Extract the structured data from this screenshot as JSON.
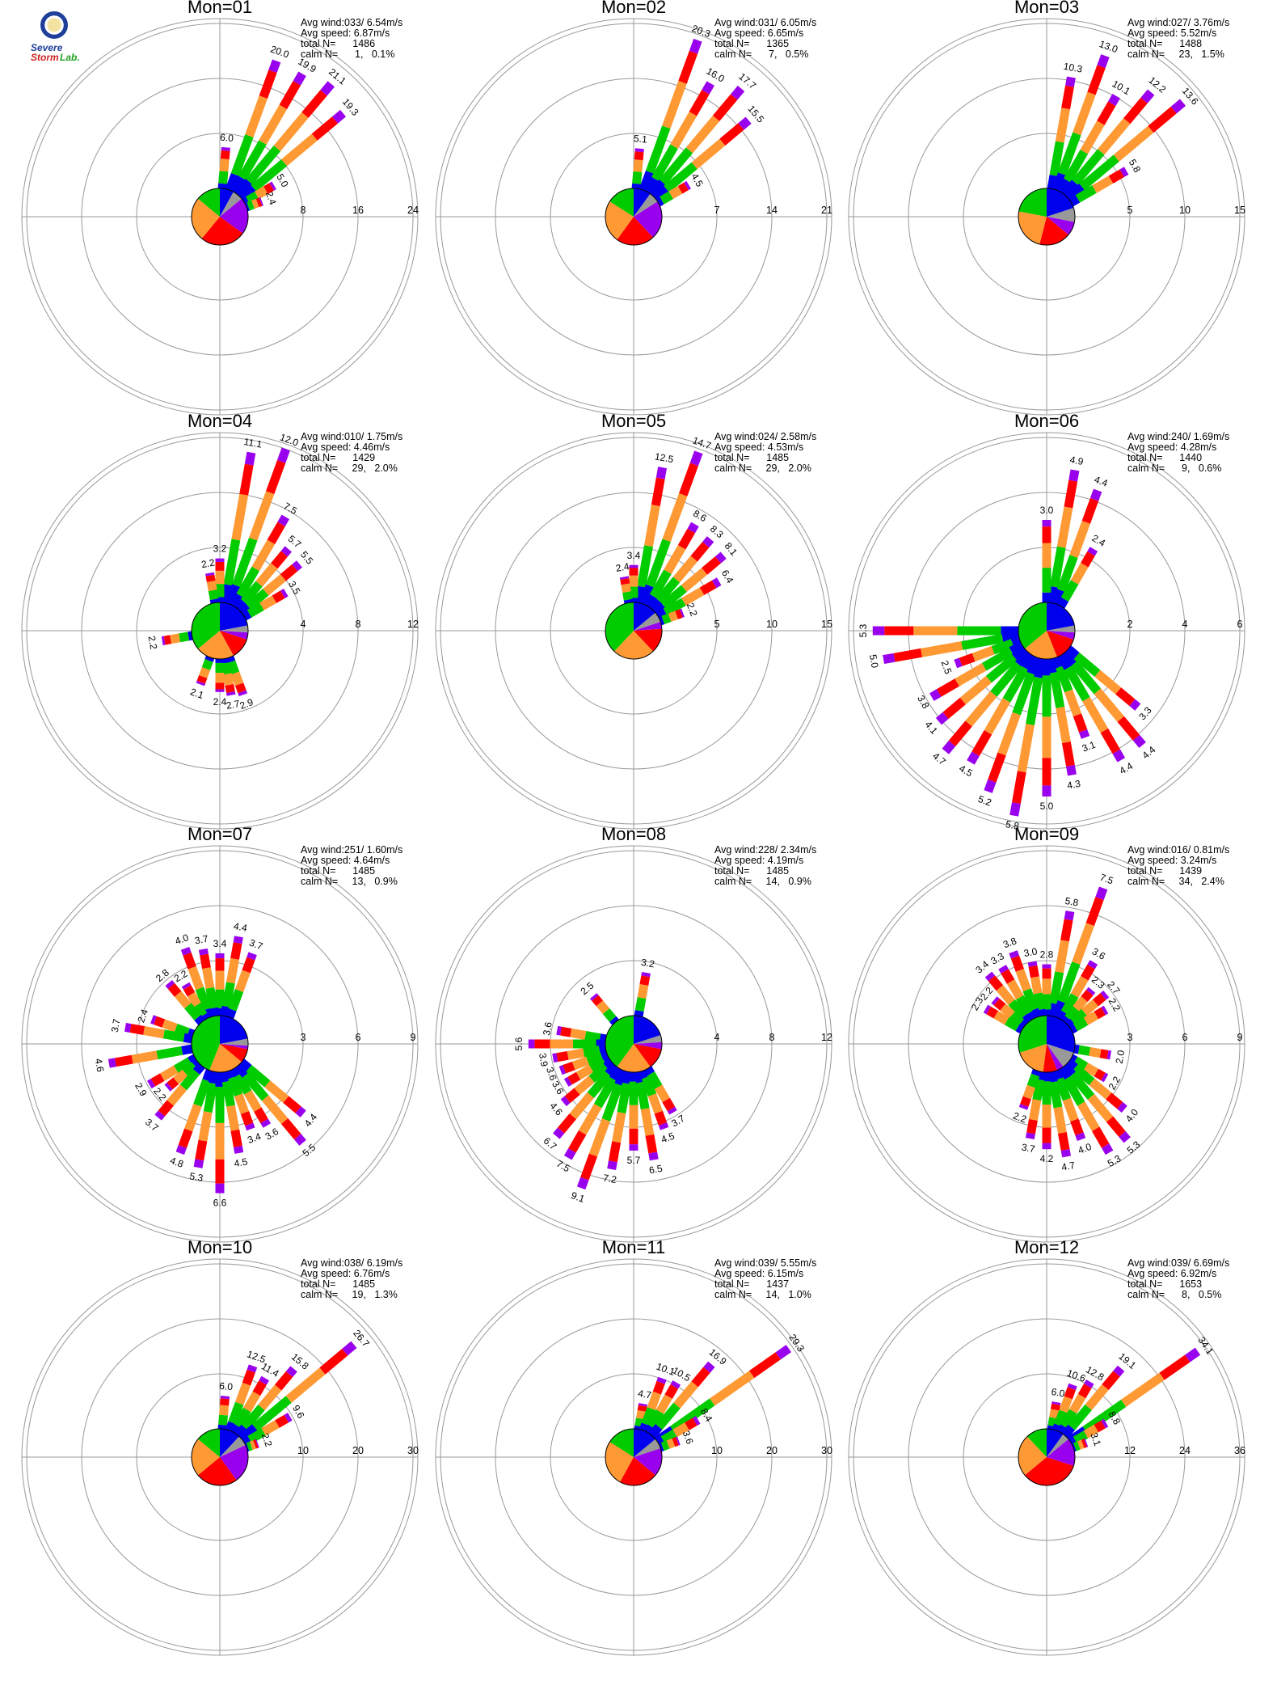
{
  "logo": {
    "text_severe": "Severe",
    "text_storm": "Storm",
    "text_lab": "Lab."
  },
  "colors": {
    "blue": "#0000ee",
    "green": "#00cc00",
    "orange": "#ff9933",
    "red": "#ff0000",
    "purple": "#9900ee",
    "gray": "#999999",
    "ring": "#999999"
  },
  "chart_data": [
    {
      "type": "polar-bar",
      "title": "Mon=01",
      "avg_wind": "Avg wind:033/ 6.54m/s",
      "avg_speed": "Avg speed: 6.87m/s",
      "total_n": "total N=      1486",
      "calm_n": "calm N=      1,   0.1%",
      "ring_values": [
        8,
        16,
        24
      ],
      "pie_percent": {
        "blue": 8,
        "green": 14,
        "orange": 25,
        "red": 26,
        "purple": 21,
        "gray": 6
      },
      "bars": [
        {
          "dir": 20,
          "total": 20.0,
          "label": "20.0"
        },
        {
          "dir": 30,
          "total": 19.9,
          "label": "19.9"
        },
        {
          "dir": 40,
          "total": 21.1,
          "label": "21.1"
        },
        {
          "dir": 50,
          "total": 19.3,
          "label": "19.3"
        },
        {
          "dir": 5,
          "total": 6.0,
          "label": "6.0"
        },
        {
          "dir": 60,
          "total": 5.0,
          "label": "5.0"
        },
        {
          "dir": 70,
          "total": 2.4,
          "label": "2.4"
        }
      ]
    },
    {
      "type": "polar-bar",
      "title": "Mon=02",
      "avg_wind": "Avg wind:031/ 6.05m/s",
      "avg_speed": "Avg speed: 6.65m/s",
      "total_n": "total N=      1365",
      "calm_n": "calm N=      7,   0.5%",
      "ring_values": [
        7,
        14,
        21
      ],
      "pie_percent": {
        "blue": 10,
        "green": 16,
        "orange": 24,
        "red": 22,
        "purple": 22,
        "gray": 6
      },
      "bars": [
        {
          "dir": 20,
          "total": 20.3,
          "label": "20.3"
        },
        {
          "dir": 30,
          "total": 16.0,
          "label": "16.0"
        },
        {
          "dir": 40,
          "total": 17.7,
          "label": "17.7"
        },
        {
          "dir": 50,
          "total": 15.5,
          "label": "15.5"
        },
        {
          "dir": 5,
          "total": 5.1,
          "label": "5.1"
        },
        {
          "dir": 60,
          "total": 4.5,
          "label": "4.5"
        }
      ]
    },
    {
      "type": "polar-bar",
      "title": "Mon=03",
      "avg_wind": "Avg wind:027/ 3.76m/s",
      "avg_speed": "Avg speed: 5.52m/s",
      "total_n": "total N=      1488",
      "calm_n": "calm N=     23,   1.5%",
      "ring_values": [
        5,
        10,
        15
      ],
      "pie_percent": {
        "blue": 20,
        "green": 22,
        "orange": 24,
        "red": 18,
        "purple": 8,
        "gray": 8
      },
      "bars": [
        {
          "dir": 10,
          "total": 10.3,
          "label": "10.3"
        },
        {
          "dir": 20,
          "total": 13.0,
          "label": "13.0"
        },
        {
          "dir": 30,
          "total": 10.1,
          "label": "10.1"
        },
        {
          "dir": 40,
          "total": 12.2,
          "label": "12.2"
        },
        {
          "dir": 50,
          "total": 13.6,
          "label": "13.6"
        },
        {
          "dir": 60,
          "total": 5.8,
          "label": "5.8"
        }
      ]
    },
    {
      "type": "polar-bar",
      "title": "Mon=04",
      "avg_wind": "Avg wind:010/ 1.75m/s",
      "avg_speed": "Avg speed: 4.46m/s",
      "total_n": "total N=      1429",
      "calm_n": "calm N=     29,   2.0%",
      "ring_values": [
        4,
        8,
        12
      ],
      "pie_percent": {
        "blue": 22,
        "green": 36,
        "orange": 22,
        "red": 12,
        "purple": 4,
        "gray": 4
      },
      "bars": [
        {
          "dir": 10,
          "total": 11.1,
          "label": "11.1"
        },
        {
          "dir": 20,
          "total": 12.0,
          "label": "12.0"
        },
        {
          "dir": 30,
          "total": 7.5,
          "label": "7.5"
        },
        {
          "dir": 40,
          "total": 5.7,
          "label": "5.7"
        },
        {
          "dir": 50,
          "total": 5.5,
          "label": "5.5"
        },
        {
          "dir": 60,
          "total": 3.5,
          "label": "3.5"
        },
        {
          "dir": 0,
          "total": 3.2,
          "label": "3.2"
        },
        {
          "dir": 350,
          "total": 2.2,
          "label": "2.2"
        },
        {
          "dir": 160,
          "total": 2.9,
          "label": "2.9"
        },
        {
          "dir": 170,
          "total": 2.7,
          "label": "2.7"
        },
        {
          "dir": 180,
          "total": 2.4,
          "label": "2.4"
        },
        {
          "dir": 200,
          "total": 2.1,
          "label": "2.1"
        },
        {
          "dir": 260,
          "total": 2.2,
          "label": "2.2"
        }
      ]
    },
    {
      "type": "polar-bar",
      "title": "Mon=05",
      "avg_wind": "Avg wind:024/ 2.58m/s",
      "avg_speed": "Avg speed: 4.53m/s",
      "total_n": "total N=      1485",
      "calm_n": "calm N=     29,   2.0%",
      "ring_values": [
        5,
        10,
        15
      ],
      "pie_percent": {
        "blue": 14,
        "green": 38,
        "orange": 24,
        "red": 14,
        "purple": 4,
        "gray": 6
      },
      "bars": [
        {
          "dir": 10,
          "total": 12.5,
          "label": "12.5"
        },
        {
          "dir": 20,
          "total": 14.7,
          "label": "14.7"
        },
        {
          "dir": 30,
          "total": 8.6,
          "label": "8.6"
        },
        {
          "dir": 40,
          "total": 8.3,
          "label": "8.3"
        },
        {
          "dir": 50,
          "total": 8.1,
          "label": "8.1"
        },
        {
          "dir": 60,
          "total": 6.4,
          "label": "6.4"
        },
        {
          "dir": 0,
          "total": 3.4,
          "label": "3.4"
        },
        {
          "dir": 350,
          "total": 2.4,
          "label": "2.4"
        },
        {
          "dir": 70,
          "total": 2.2,
          "label": "2.2"
        }
      ]
    },
    {
      "type": "polar-bar",
      "title": "Mon=06",
      "avg_wind": "Avg wind:240/ 1.69m/s",
      "avg_speed": "Avg speed: 4.28m/s",
      "total_n": "total N=      1440",
      "calm_n": "calm N=      9,   0.6%",
      "ring_values": [
        2,
        4,
        6
      ],
      "pie_percent": {
        "blue": 22,
        "green": 36,
        "orange": 20,
        "red": 14,
        "purple": 4,
        "gray": 4
      },
      "bars": [
        {
          "dir": 10,
          "total": 4.9,
          "label": "4.9"
        },
        {
          "dir": 20,
          "total": 4.4,
          "label": "4.4"
        },
        {
          "dir": 0,
          "total": 3.0,
          "label": "3.0"
        },
        {
          "dir": 30,
          "total": 2.4,
          "label": "2.4"
        },
        {
          "dir": 270,
          "total": 5.3,
          "label": "5.3"
        },
        {
          "dir": 260,
          "total": 5.0,
          "label": "5.0"
        },
        {
          "dir": 250,
          "total": 2.5,
          "label": "2.5"
        },
        {
          "dir": 240,
          "total": 3.8,
          "label": "3.8"
        },
        {
          "dir": 230,
          "total": 4.1,
          "label": "4.1"
        },
        {
          "dir": 220,
          "total": 4.7,
          "label": "4.7"
        },
        {
          "dir": 210,
          "total": 4.5,
          "label": "4.5"
        },
        {
          "dir": 200,
          "total": 5.2,
          "label": "5.2"
        },
        {
          "dir": 190,
          "total": 5.8,
          "label": "5.8"
        },
        {
          "dir": 180,
          "total": 5.0,
          "label": "5.0"
        },
        {
          "dir": 170,
          "total": 4.3,
          "label": "4.3"
        },
        {
          "dir": 160,
          "total": 3.1,
          "label": "3.1"
        },
        {
          "dir": 150,
          "total": 4.4,
          "label": "4.4"
        },
        {
          "dir": 140,
          "total": 4.4,
          "label": "4.4"
        },
        {
          "dir": 130,
          "total": 3.3,
          "label": "3.3"
        }
      ]
    },
    {
      "type": "polar-bar",
      "title": "Mon=07",
      "avg_wind": "Avg wind:251/ 1.60m/s",
      "avg_speed": "Avg speed: 4.64m/s",
      "total_n": "total N=      1485",
      "calm_n": "calm N=     13,   0.9%",
      "ring_values": [
        3,
        6,
        9
      ],
      "pie_percent": {
        "blue": 22,
        "green": 44,
        "orange": 20,
        "red": 8,
        "purple": 2,
        "gray": 4
      },
      "bars": [
        {
          "dir": 0,
          "total": 3.4,
          "label": "3.4"
        },
        {
          "dir": 10,
          "total": 4.4,
          "label": "4.4"
        },
        {
          "dir": 20,
          "total": 3.7,
          "label": "3.7"
        },
        {
          "dir": 340,
          "total": 4.0,
          "label": "4.0"
        },
        {
          "dir": 350,
          "total": 3.7,
          "label": "3.7"
        },
        {
          "dir": 330,
          "total": 2.2,
          "label": "2.2"
        },
        {
          "dir": 320,
          "total": 2.8,
          "label": "2.8"
        },
        {
          "dir": 290,
          "total": 2.4,
          "label": "2.4"
        },
        {
          "dir": 280,
          "total": 3.7,
          "label": "3.7"
        },
        {
          "dir": 260,
          "total": 4.6,
          "label": "4.6"
        },
        {
          "dir": 240,
          "total": 2.9,
          "label": "2.9"
        },
        {
          "dir": 230,
          "total": 2.2,
          "label": "2.2"
        },
        {
          "dir": 220,
          "total": 3.7,
          "label": "3.7"
        },
        {
          "dir": 200,
          "total": 4.8,
          "label": "4.8"
        },
        {
          "dir": 190,
          "total": 5.3,
          "label": "5.3"
        },
        {
          "dir": 180,
          "total": 6.6,
          "label": "6.6"
        },
        {
          "dir": 170,
          "total": 4.5,
          "label": "4.5"
        },
        {
          "dir": 160,
          "total": 3.4,
          "label": "3.4"
        },
        {
          "dir": 150,
          "total": 3.6,
          "label": "3.6"
        },
        {
          "dir": 140,
          "total": 5.5,
          "label": "5.5"
        },
        {
          "dir": 130,
          "total": 4.4,
          "label": "4.4"
        }
      ]
    },
    {
      "type": "polar-bar",
      "title": "Mon=08",
      "avg_wind": "Avg wind:228/ 2.34m/s",
      "avg_speed": "Avg speed: 4.19m/s",
      "total_n": "total N=      1485",
      "calm_n": "calm N=     14,   0.9%",
      "ring_values": [
        4,
        8,
        12
      ],
      "pie_percent": {
        "blue": 20,
        "green": 40,
        "orange": 20,
        "red": 12,
        "purple": 4,
        "gray": 4
      },
      "bars": [
        {
          "dir": 10,
          "total": 3.2,
          "label": "3.2"
        },
        {
          "dir": 320,
          "total": 2.5,
          "label": "2.5"
        },
        {
          "dir": 280,
          "total": 3.6,
          "label": "3.6"
        },
        {
          "dir": 270,
          "total": 5.6,
          "label": "5.6"
        },
        {
          "dir": 260,
          "total": 3.9,
          "label": "3.9"
        },
        {
          "dir": 250,
          "total": 3.6,
          "label": "3.6"
        },
        {
          "dir": 240,
          "total": 3.6,
          "label": "3.6"
        },
        {
          "dir": 230,
          "total": 4.6,
          "label": "4.6"
        },
        {
          "dir": 220,
          "total": 6.7,
          "label": "6.7"
        },
        {
          "dir": 210,
          "total": 7.5,
          "label": "7.5"
        },
        {
          "dir": 200,
          "total": 9.1,
          "label": "9.1"
        },
        {
          "dir": 190,
          "total": 7.2,
          "label": "7.2"
        },
        {
          "dir": 180,
          "total": 5.7,
          "label": "5.7"
        },
        {
          "dir": 170,
          "total": 6.5,
          "label": "6.5"
        },
        {
          "dir": 160,
          "total": 4.5,
          "label": "4.5"
        },
        {
          "dir": 150,
          "total": 3.7,
          "label": "3.7"
        }
      ]
    },
    {
      "type": "polar-bar",
      "title": "Mon=09",
      "avg_wind": "Avg wind:016/ 0.81m/s",
      "avg_speed": "Avg speed: 3.24m/s",
      "total_n": "total N=      1439",
      "calm_n": "calm N=     34,   2.4%",
      "ring_values": [
        3,
        6,
        9
      ],
      "pie_percent": {
        "blue": 30,
        "green": 30,
        "orange": 18,
        "red": 8,
        "purple": 4,
        "gray": 10
      },
      "bars": [
        {
          "dir": 10,
          "total": 5.8,
          "label": "5.8"
        },
        {
          "dir": 20,
          "total": 7.5,
          "label": "7.5"
        },
        {
          "dir": 0,
          "total": 2.8,
          "label": "2.8"
        },
        {
          "dir": 350,
          "total": 3.0,
          "label": "3.0"
        },
        {
          "dir": 340,
          "total": 3.8,
          "label": "3.8"
        },
        {
          "dir": 330,
          "total": 3.3,
          "label": "3.3"
        },
        {
          "dir": 320,
          "total": 3.4,
          "label": "3.4"
        },
        {
          "dir": 310,
          "total": 2.2,
          "label": "2.2"
        },
        {
          "dir": 300,
          "total": 2.3,
          "label": "2.3"
        },
        {
          "dir": 30,
          "total": 3.6,
          "label": "3.6"
        },
        {
          "dir": 40,
          "total": 2.3,
          "label": "2.3"
        },
        {
          "dir": 50,
          "total": 2.7,
          "label": "2.7"
        },
        {
          "dir": 60,
          "total": 2.2,
          "label": "2.2"
        },
        {
          "dir": 100,
          "total": 2.0,
          "label": "2.0"
        },
        {
          "dir": 120,
          "total": 2.2,
          "label": "2.2"
        },
        {
          "dir": 130,
          "total": 4.0,
          "label": "4.0"
        },
        {
          "dir": 140,
          "total": 5.3,
          "label": "5.3"
        },
        {
          "dir": 150,
          "total": 5.3,
          "label": "5.3"
        },
        {
          "dir": 160,
          "total": 4.0,
          "label": "4.0"
        },
        {
          "dir": 170,
          "total": 4.7,
          "label": "4.7"
        },
        {
          "dir": 180,
          "total": 4.2,
          "label": "4.2"
        },
        {
          "dir": 190,
          "total": 3.7,
          "label": "3.7"
        },
        {
          "dir": 200,
          "total": 2.2,
          "label": "2.2"
        }
      ]
    },
    {
      "type": "polar-bar",
      "title": "Mon=10",
      "avg_wind": "Avg wind:038/ 6.19m/s",
      "avg_speed": "Avg speed: 6.76m/s",
      "total_n": "total N=      1485",
      "calm_n": "calm N=     19,   1.3%",
      "ring_values": [
        10,
        20,
        30
      ],
      "pie_percent": {
        "blue": 12,
        "green": 14,
        "orange": 22,
        "red": 24,
        "purple": 22,
        "gray": 6
      },
      "bars": [
        {
          "dir": 5,
          "total": 6.0,
          "label": "6.0"
        },
        {
          "dir": 20,
          "total": 12.5,
          "label": "12.5"
        },
        {
          "dir": 30,
          "total": 11.4,
          "label": "11.4"
        },
        {
          "dir": 40,
          "total": 15.8,
          "label": "15.8"
        },
        {
          "dir": 50,
          "total": 26.7,
          "label": "26.7"
        },
        {
          "dir": 60,
          "total": 9.6,
          "label": "9.6"
        },
        {
          "dir": 70,
          "total": 2.2,
          "label": "2.2"
        }
      ]
    },
    {
      "type": "polar-bar",
      "title": "Mon=11",
      "avg_wind": "Avg wind:039/ 5.55m/s",
      "avg_speed": "Avg speed: 6.15m/s",
      "total_n": "total N=      1437",
      "calm_n": "calm N=     14,   1.0%",
      "ring_values": [
        10,
        20,
        30
      ],
      "pie_percent": {
        "blue": 14,
        "green": 16,
        "orange": 26,
        "red": 22,
        "purple": 16,
        "gray": 6
      },
      "bars": [
        {
          "dir": 10,
          "total": 4.7,
          "label": "4.7"
        },
        {
          "dir": 20,
          "total": 10.1,
          "label": "10.1"
        },
        {
          "dir": 30,
          "total": 10.5,
          "label": "10.5"
        },
        {
          "dir": 40,
          "total": 16.9,
          "label": "16.9"
        },
        {
          "dir": 55,
          "total": 29.3,
          "label": "29.3"
        },
        {
          "dir": 60,
          "total": 8.4,
          "label": "8.4"
        },
        {
          "dir": 70,
          "total": 3.6,
          "label": "3.6"
        }
      ]
    },
    {
      "type": "polar-bar",
      "title": "Mon=12",
      "avg_wind": "Avg wind:039/ 6.69m/s",
      "avg_speed": "Avg speed: 6.92m/s",
      "total_n": "total N=      1653",
      "calm_n": "calm N=      8,   0.5%",
      "ring_values": [
        12,
        24,
        36
      ],
      "pie_percent": {
        "blue": 10,
        "green": 12,
        "orange": 24,
        "red": 34,
        "purple": 16,
        "gray": 4
      },
      "bars": [
        {
          "dir": 10,
          "total": 6.0,
          "label": "6.0"
        },
        {
          "dir": 20,
          "total": 10.6,
          "label": "10.6"
        },
        {
          "dir": 30,
          "total": 12.8,
          "label": "12.8"
        },
        {
          "dir": 40,
          "total": 19.1,
          "label": "19.1"
        },
        {
          "dir": 55,
          "total": 34.1,
          "label": "34.1"
        },
        {
          "dir": 60,
          "total": 8.8,
          "label": "8.8"
        },
        {
          "dir": 70,
          "total": 3.1,
          "label": "3.1"
        }
      ]
    }
  ]
}
